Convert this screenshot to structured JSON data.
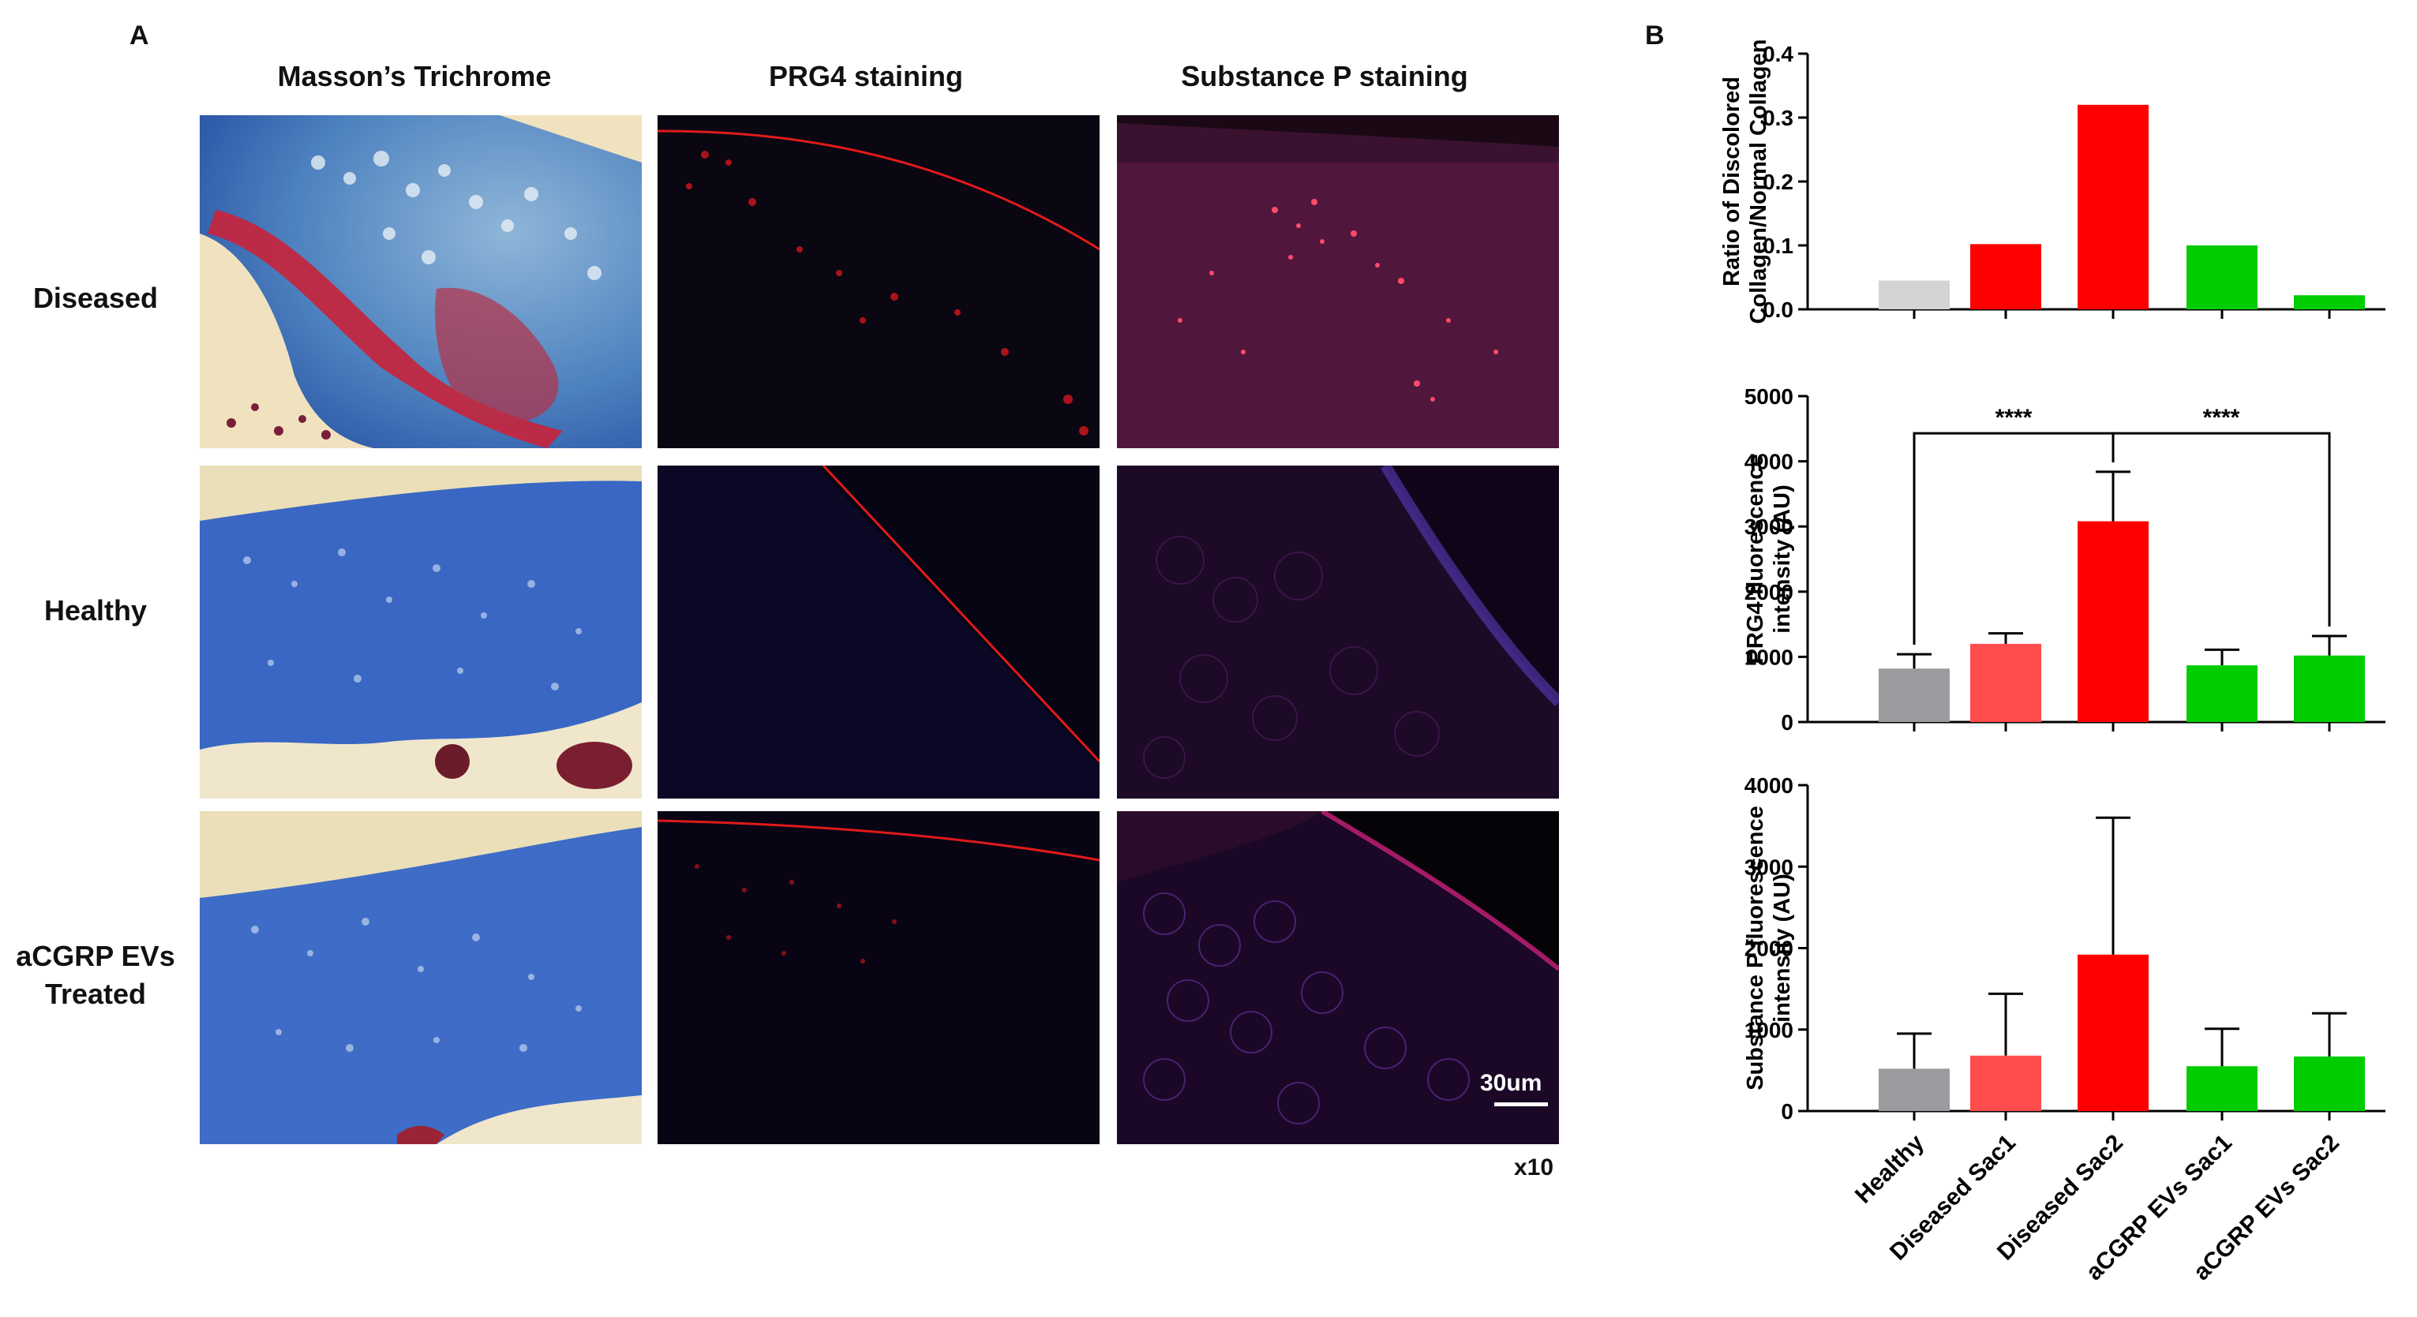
{
  "panel_a": {
    "letter": "A",
    "columns": [
      "Masson’s Trichrome",
      "PRG4 staining",
      "Substance P staining"
    ],
    "rows": [
      {
        "label_lines": [
          "Diseased"
        ]
      },
      {
        "label_lines": [
          "Healthy"
        ]
      },
      {
        "label_lines": [
          "aCGRP EVs",
          "Treated"
        ]
      }
    ],
    "scale_bar_label": "30um",
    "magnification": "x10"
  },
  "panel_b": {
    "letter": "B"
  },
  "colors": {
    "gray": "#9b9b9f",
    "light_gray": "#d3d3d3",
    "red": "#ff0000",
    "light_red": "#ff4d4d",
    "green": "#00cc00"
  },
  "chart_data": [
    {
      "type": "bar",
      "ylabel_lines": [
        "Ratio of Discolored",
        "Collagen/Normal Collagen"
      ],
      "categories": [
        "Healthy",
        "Diseased Sac1",
        "Diseased Sac2",
        "aCGRP EVs Sac1",
        "aCGRP EVs Sac2"
      ],
      "values": [
        0.045,
        0.102,
        0.32,
        0.1,
        0.022
      ],
      "bar_colors": [
        "#d3d3d3",
        "#ff0000",
        "#ff0000",
        "#00cc00",
        "#00cc00"
      ],
      "ylim": [
        0,
        0.4
      ],
      "yticks": [
        "0.0",
        "0.1",
        "0.2",
        "0.3",
        "0.4"
      ],
      "ytick_values": [
        0,
        0.1,
        0.2,
        0.3,
        0.4
      ]
    },
    {
      "type": "bar",
      "ylabel_lines": [
        "PRG4 fluorescence",
        "intensity (AU)"
      ],
      "categories": [
        "Healthy",
        "Diseased Sac1",
        "Diseased Sac2",
        "aCGRP EVs Sac1",
        "aCGRP EVs Sac2"
      ],
      "values": [
        820,
        1200,
        3080,
        870,
        1020
      ],
      "errors": [
        220,
        160,
        760,
        240,
        300
      ],
      "bar_colors": [
        "#9b9b9f",
        "#ff4d4d",
        "#ff0000",
        "#00cc00",
        "#00cc00"
      ],
      "ylim": [
        0,
        5000
      ],
      "yticks": [
        "0",
        "1000",
        "2000",
        "3000",
        "4000",
        "5000"
      ],
      "ytick_values": [
        0,
        1000,
        2000,
        3000,
        4000,
        5000
      ],
      "significance": [
        {
          "from": 0,
          "to": 2,
          "label": "****"
        },
        {
          "from": 2,
          "to": 4,
          "label": "****"
        }
      ]
    },
    {
      "type": "bar",
      "ylabel_lines": [
        "Substance P fluorescence",
        "intensity (AU)"
      ],
      "categories": [
        "Healthy",
        "Diseased Sac1",
        "Diseased Sac2",
        "aCGRP EVs Sac1",
        "aCGRP EVs Sac2"
      ],
      "values": [
        520,
        680,
        1920,
        550,
        670
      ],
      "errors": [
        430,
        760,
        1680,
        460,
        530
      ],
      "bar_colors": [
        "#9b9b9f",
        "#ff4d4d",
        "#ff0000",
        "#00cc00",
        "#00cc00"
      ],
      "ylim": [
        0,
        4000
      ],
      "yticks": [
        "0",
        "1000",
        "2000",
        "3000",
        "4000"
      ],
      "ytick_values": [
        0,
        1000,
        2000,
        3000,
        4000
      ]
    }
  ]
}
